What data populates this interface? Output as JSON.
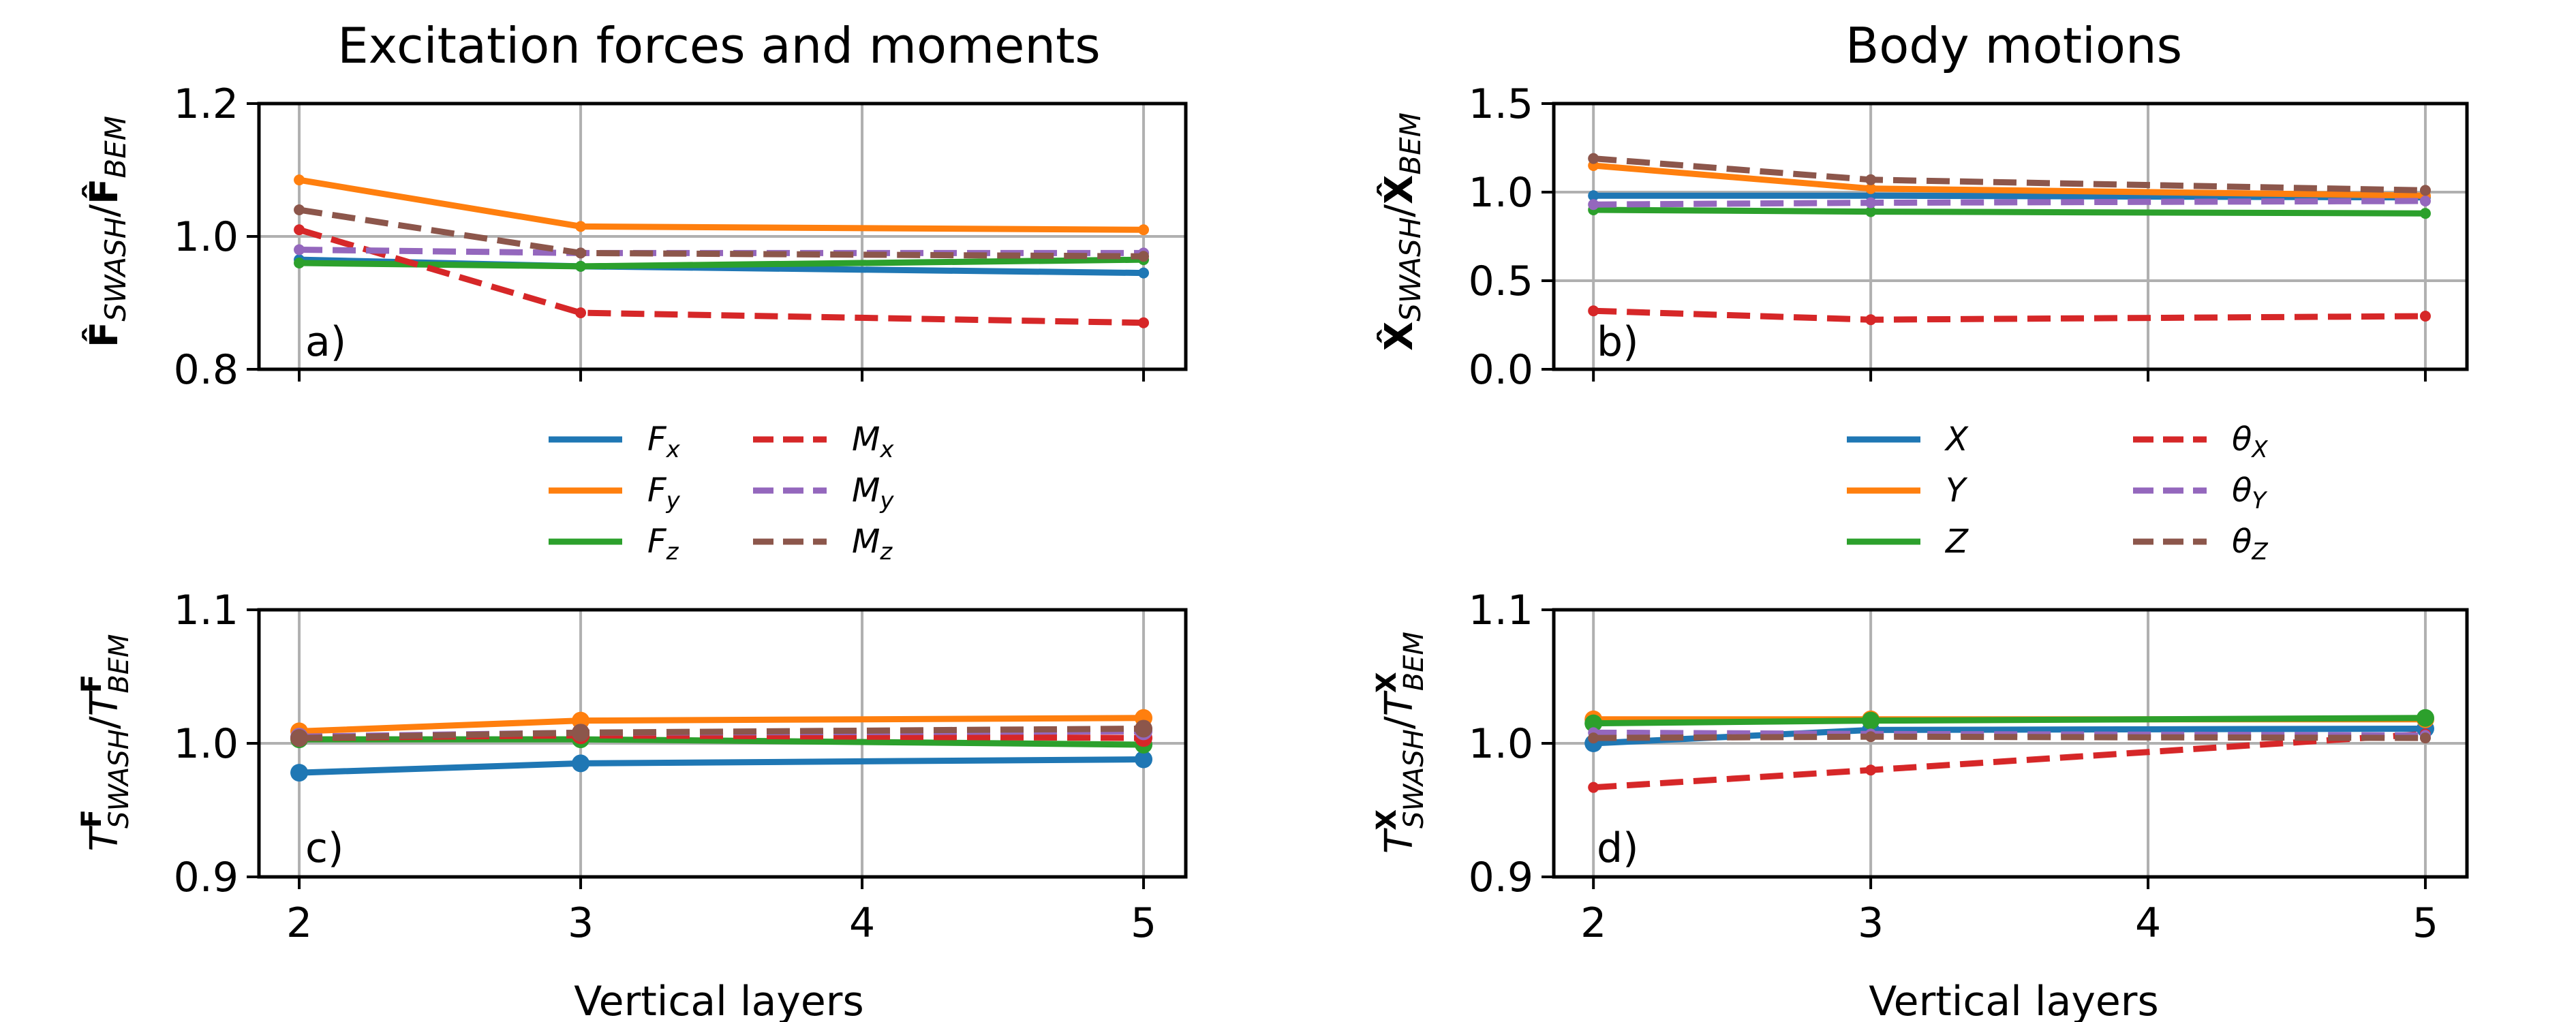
{
  "figure": {
    "xlabel": "Vertical layers"
  },
  "chart_data": [
    {
      "id": "a",
      "type": "line",
      "title": "Excitation forces and moments",
      "panel_label": "a)",
      "ylabel": "F̂SWASH/F̂BEM",
      "x": [
        2,
        3,
        4,
        5
      ],
      "xticks": [
        "2",
        "3",
        "4",
        "5"
      ],
      "xlabel": "",
      "ylim": [
        0.8,
        1.2
      ],
      "yticks": [
        "0.8",
        "1.0",
        "1.2"
      ],
      "grid": true,
      "markers": "small",
      "series": [
        {
          "name": "Fx",
          "color": "#1f77b4",
          "dash": "solid",
          "x": [
            2,
            3,
            5
          ],
          "values": [
            0.965,
            0.955,
            0.945
          ]
        },
        {
          "name": "Fy",
          "color": "#ff7f0e",
          "dash": "solid",
          "x": [
            2,
            3,
            5
          ],
          "values": [
            1.085,
            1.015,
            1.01
          ]
        },
        {
          "name": "Fz",
          "color": "#2ca02c",
          "dash": "solid",
          "x": [
            2,
            3,
            5
          ],
          "values": [
            0.96,
            0.955,
            0.965
          ]
        },
        {
          "name": "Mx",
          "color": "#d62728",
          "dash": "dashed",
          "x": [
            2,
            3,
            5
          ],
          "values": [
            1.01,
            0.885,
            0.87
          ]
        },
        {
          "name": "My",
          "color": "#9467bd",
          "dash": "dashed",
          "x": [
            2,
            3,
            5
          ],
          "values": [
            0.98,
            0.975,
            0.975
          ]
        },
        {
          "name": "Mz",
          "color": "#8c564b",
          "dash": "dashed",
          "x": [
            2,
            3,
            5
          ],
          "values": [
            1.04,
            0.975,
            0.97
          ]
        }
      ]
    },
    {
      "id": "b",
      "type": "line",
      "title": "Body motions",
      "panel_label": "b)",
      "ylabel": "X̂SWASH/X̂BEM",
      "x": [
        2,
        3,
        4,
        5
      ],
      "xticks": [
        "2",
        "3",
        "4",
        "5"
      ],
      "xlabel": "",
      "ylim": [
        0.0,
        1.5
      ],
      "yticks": [
        "0.0",
        "0.5",
        "1.0",
        "1.5"
      ],
      "grid": true,
      "markers": "small",
      "series": [
        {
          "name": "X",
          "color": "#1f77b4",
          "dash": "solid",
          "x": [
            2,
            3,
            5
          ],
          "values": [
            0.98,
            0.98,
            0.97
          ]
        },
        {
          "name": "Y",
          "color": "#ff7f0e",
          "dash": "solid",
          "x": [
            2,
            3,
            5
          ],
          "values": [
            1.15,
            1.02,
            0.98
          ]
        },
        {
          "name": "Z",
          "color": "#2ca02c",
          "dash": "solid",
          "x": [
            2,
            3,
            5
          ],
          "values": [
            0.9,
            0.89,
            0.88
          ]
        },
        {
          "name": "θX",
          "color": "#d62728",
          "dash": "dashed",
          "x": [
            2,
            3,
            5
          ],
          "values": [
            0.33,
            0.28,
            0.3
          ]
        },
        {
          "name": "θY",
          "color": "#9467bd",
          "dash": "dashed",
          "x": [
            2,
            3,
            5
          ],
          "values": [
            0.93,
            0.94,
            0.95
          ]
        },
        {
          "name": "θZ",
          "color": "#8c564b",
          "dash": "dashed",
          "x": [
            2,
            3,
            5
          ],
          "values": [
            1.19,
            1.07,
            1.01
          ]
        }
      ]
    },
    {
      "id": "c",
      "type": "line",
      "title": "",
      "panel_label": "c)",
      "ylabel": "TFSWASH/TFBEM",
      "x": [
        2,
        3,
        4,
        5
      ],
      "xticks": [
        "2",
        "3",
        "4",
        "5"
      ],
      "xlabel": "Vertical layers",
      "ylim": [
        0.9,
        1.1
      ],
      "yticks": [
        "0.9",
        "1.0",
        "1.1"
      ],
      "grid": true,
      "markers": "large",
      "series": [
        {
          "name": "Fx",
          "color": "#1f77b4",
          "dash": "solid",
          "x": [
            2,
            3,
            5
          ],
          "values": [
            0.978,
            0.985,
            0.988
          ]
        },
        {
          "name": "Fy",
          "color": "#ff7f0e",
          "dash": "solid",
          "x": [
            2,
            3,
            5
          ],
          "values": [
            1.009,
            1.017,
            1.019
          ]
        },
        {
          "name": "Fz",
          "color": "#2ca02c",
          "dash": "solid",
          "x": [
            2,
            3,
            5
          ],
          "values": [
            1.003,
            1.003,
            0.999
          ]
        },
        {
          "name": "Mx",
          "color": "#d62728",
          "dash": "dashed",
          "x": [
            2,
            3,
            5
          ],
          "values": [
            1.004,
            1.006,
            1.004
          ]
        },
        {
          "name": "My",
          "color": "#9467bd",
          "dash": "dashed",
          "x": [
            2,
            3,
            5
          ],
          "values": [
            1.005,
            1.008,
            1.009
          ]
        },
        {
          "name": "Mz",
          "color": "#8c564b",
          "dash": "dashed",
          "x": [
            2,
            3,
            5
          ],
          "values": [
            1.004,
            1.008,
            1.011
          ]
        }
      ]
    },
    {
      "id": "d",
      "type": "line",
      "title": "",
      "panel_label": "d)",
      "ylabel": "TXSWASH/TXBEM",
      "x": [
        2,
        3,
        4,
        5
      ],
      "xticks": [
        "2",
        "3",
        "4",
        "5"
      ],
      "xlabel": "Vertical layers",
      "ylim": [
        0.9,
        1.1
      ],
      "yticks": [
        "0.9",
        "1.0",
        "1.1"
      ],
      "grid": true,
      "markers": "mixed",
      "series": [
        {
          "name": "X",
          "color": "#1f77b4",
          "dash": "solid",
          "x": [
            2,
            3,
            5
          ],
          "values": [
            1.0,
            1.01,
            1.011
          ]
        },
        {
          "name": "Y",
          "color": "#ff7f0e",
          "dash": "solid",
          "x": [
            2,
            3,
            5
          ],
          "values": [
            1.018,
            1.018,
            1.018
          ]
        },
        {
          "name": "Z",
          "color": "#2ca02c",
          "dash": "solid",
          "x": [
            2,
            3,
            5
          ],
          "values": [
            1.015,
            1.017,
            1.019
          ]
        },
        {
          "name": "θX",
          "color": "#d62728",
          "dash": "dashed",
          "x": [
            2,
            3,
            5
          ],
          "values": [
            0.967,
            0.98,
            1.007
          ]
        },
        {
          "name": "θY",
          "color": "#9467bd",
          "dash": "dashed",
          "x": [
            2,
            3,
            5
          ],
          "values": [
            1.008,
            1.007,
            1.006
          ]
        },
        {
          "name": "θZ",
          "color": "#8c564b",
          "dash": "dashed",
          "x": [
            2,
            3,
            5
          ],
          "values": [
            1.004,
            1.005,
            1.004
          ]
        }
      ]
    }
  ],
  "legends": [
    {
      "panel": "a",
      "entries": [
        {
          "name": "Fx",
          "base": "F",
          "sub": "x",
          "color": "#1f77b4",
          "dash": "solid"
        },
        {
          "name": "Fy",
          "base": "F",
          "sub": "y",
          "color": "#ff7f0e",
          "dash": "solid"
        },
        {
          "name": "Fz",
          "base": "F",
          "sub": "z",
          "color": "#2ca02c",
          "dash": "solid"
        },
        {
          "name": "Mx",
          "base": "M",
          "sub": "x",
          "color": "#d62728",
          "dash": "dashed"
        },
        {
          "name": "My",
          "base": "M",
          "sub": "y",
          "color": "#9467bd",
          "dash": "dashed"
        },
        {
          "name": "Mz",
          "base": "M",
          "sub": "z",
          "color": "#8c564b",
          "dash": "dashed"
        }
      ]
    },
    {
      "panel": "b",
      "entries": [
        {
          "name": "X",
          "base": "X",
          "sub": "",
          "color": "#1f77b4",
          "dash": "solid"
        },
        {
          "name": "Y",
          "base": "Y",
          "sub": "",
          "color": "#ff7f0e",
          "dash": "solid"
        },
        {
          "name": "Z",
          "base": "Z",
          "sub": "",
          "color": "#2ca02c",
          "dash": "solid"
        },
        {
          "name": "θX",
          "base": "θ",
          "sub": "X",
          "color": "#d62728",
          "dash": "dashed"
        },
        {
          "name": "θY",
          "base": "θ",
          "sub": "Y",
          "color": "#9467bd",
          "dash": "dashed"
        },
        {
          "name": "θZ",
          "base": "θ",
          "sub": "Z",
          "color": "#8c564b",
          "dash": "dashed"
        }
      ]
    }
  ]
}
